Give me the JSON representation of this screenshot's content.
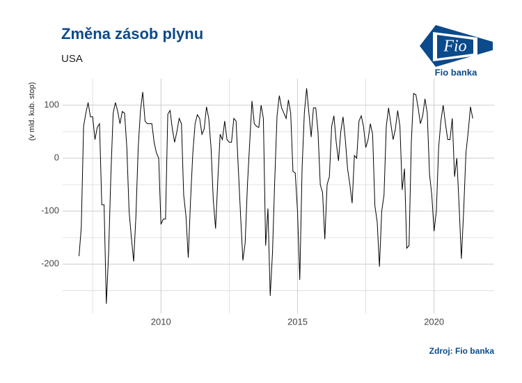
{
  "chart_data": {
    "type": "line",
    "title": "Změna zásob plynu",
    "subtitle": "USA",
    "y_label": "(v mld. kub. stop)",
    "source": "Zdroj: Fio banka",
    "logo": {
      "mark": "Fio",
      "name": "Fio banka"
    },
    "xlim": [
      2006.4,
      2022.2
    ],
    "xticks": [
      2010,
      2015,
      2020
    ],
    "minor_xticks": [
      2007.5,
      2012.5,
      2017.5
    ],
    "ylim": [
      -293,
      150
    ],
    "yticks": [
      -200,
      -100,
      0,
      100
    ],
    "minor_yticks": [
      -250,
      -150,
      -50,
      50
    ],
    "grid": true,
    "series": [
      {
        "color": "#000000",
        "x": [
          2007.0,
          2007.083,
          2007.167,
          2007.25,
          2007.333,
          2007.417,
          2007.5,
          2007.583,
          2007.667,
          2007.75,
          2007.833,
          2007.917,
          2008.0,
          2008.083,
          2008.167,
          2008.25,
          2008.333,
          2008.417,
          2008.5,
          2008.583,
          2008.667,
          2008.75,
          2008.833,
          2008.917,
          2009.0,
          2009.083,
          2009.167,
          2009.25,
          2009.333,
          2009.417,
          2009.5,
          2009.583,
          2009.667,
          2009.75,
          2009.833,
          2009.917,
          2010.0,
          2010.083,
          2010.167,
          2010.25,
          2010.333,
          2010.417,
          2010.5,
          2010.583,
          2010.667,
          2010.75,
          2010.833,
          2010.917,
          2011.0,
          2011.083,
          2011.167,
          2011.25,
          2011.333,
          2011.417,
          2011.5,
          2011.583,
          2011.667,
          2011.75,
          2011.833,
          2011.917,
          2012.0,
          2012.083,
          2012.167,
          2012.25,
          2012.333,
          2012.417,
          2012.5,
          2012.583,
          2012.667,
          2012.75,
          2012.833,
          2012.917,
          2013.0,
          2013.083,
          2013.167,
          2013.25,
          2013.333,
          2013.417,
          2013.5,
          2013.583,
          2013.667,
          2013.75,
          2013.833,
          2013.917,
          2014.0,
          2014.083,
          2014.167,
          2014.25,
          2014.333,
          2014.417,
          2014.5,
          2014.583,
          2014.667,
          2014.75,
          2014.833,
          2014.917,
          2015.0,
          2015.083,
          2015.167,
          2015.25,
          2015.333,
          2015.417,
          2015.5,
          2015.583,
          2015.667,
          2015.75,
          2015.833,
          2015.917,
          2016.0,
          2016.083,
          2016.167,
          2016.25,
          2016.333,
          2016.417,
          2016.5,
          2016.583,
          2016.667,
          2016.75,
          2016.833,
          2016.917,
          2017.0,
          2017.083,
          2017.167,
          2017.25,
          2017.333,
          2017.417,
          2017.5,
          2017.583,
          2017.667,
          2017.75,
          2017.833,
          2017.917,
          2018.0,
          2018.083,
          2018.167,
          2018.25,
          2018.333,
          2018.417,
          2018.5,
          2018.583,
          2018.667,
          2018.75,
          2018.833,
          2018.917,
          2019.0,
          2019.083,
          2019.167,
          2019.25,
          2019.333,
          2019.417,
          2019.5,
          2019.583,
          2019.667,
          2019.75,
          2019.833,
          2019.917,
          2020.0,
          2020.083,
          2020.167,
          2020.25,
          2020.333,
          2020.417,
          2020.5,
          2020.583,
          2020.667,
          2020.75,
          2020.833,
          2020.917,
          2021.0,
          2021.083,
          2021.167,
          2021.25,
          2021.333,
          2021.417
        ],
        "values": [
          -185,
          -130,
          60,
          85,
          105,
          78,
          78,
          35,
          58,
          65,
          -88,
          -88,
          -275,
          -180,
          -30,
          85,
          105,
          88,
          65,
          88,
          85,
          20,
          -100,
          -150,
          -195,
          -110,
          20,
          90,
          125,
          70,
          65,
          65,
          65,
          30,
          10,
          0,
          -125,
          -115,
          -115,
          83,
          90,
          55,
          30,
          50,
          75,
          65,
          -70,
          -110,
          -188,
          -80,
          10,
          65,
          82,
          75,
          45,
          55,
          97,
          75,
          20,
          -80,
          -133,
          -40,
          45,
          35,
          70,
          35,
          30,
          30,
          75,
          70,
          -20,
          -110,
          -193,
          -160,
          -50,
          30,
          108,
          65,
          60,
          58,
          100,
          75,
          -165,
          -95,
          -260,
          -180,
          -40,
          80,
          118,
          95,
          85,
          75,
          110,
          85,
          -25,
          -28,
          -100,
          -230,
          -20,
          85,
          132,
          85,
          40,
          95,
          95,
          50,
          -50,
          -65,
          -153,
          -50,
          -35,
          60,
          80,
          30,
          -5,
          50,
          78,
          35,
          -20,
          -50,
          -85,
          5,
          0,
          70,
          80,
          60,
          20,
          35,
          65,
          45,
          -90,
          -120,
          -205,
          -100,
          -70,
          60,
          95,
          65,
          35,
          55,
          90,
          60,
          -60,
          -20,
          -170,
          -165,
          30,
          122,
          120,
          95,
          65,
          80,
          112,
          85,
          -30,
          -70,
          -138,
          -100,
          20,
          70,
          100,
          65,
          35,
          35,
          75,
          -35,
          0,
          -90,
          -190,
          -100,
          10,
          50,
          97,
          75
        ]
      }
    ]
  }
}
